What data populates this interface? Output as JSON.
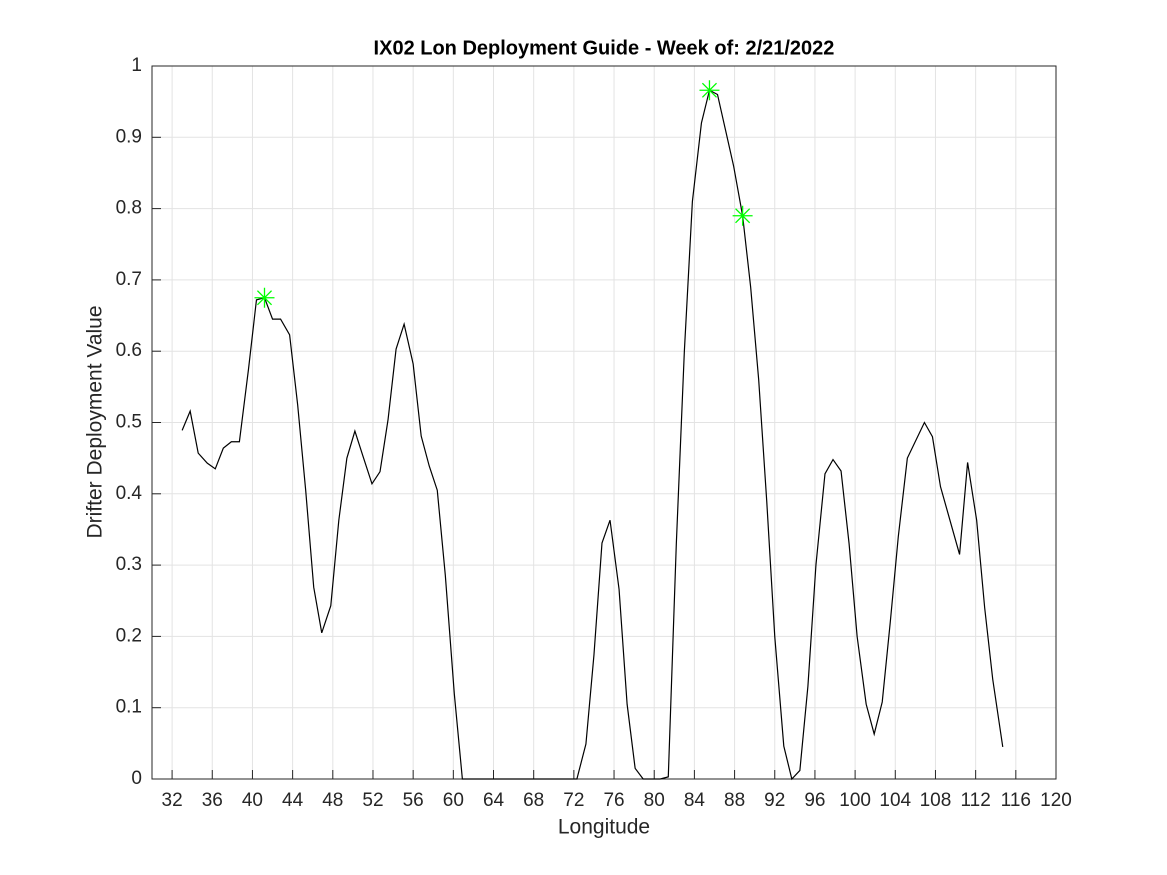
{
  "chart_data": {
    "type": "line",
    "title": "IX02 Lon Deployment Guide - Week of: 2/21/2022",
    "x_label": "Longitude",
    "y_label": "Drifter Deployment Value",
    "xlim": [
      30,
      120
    ],
    "ylim": [
      0,
      1
    ],
    "xticks": [
      32,
      36,
      40,
      44,
      48,
      52,
      56,
      60,
      64,
      68,
      72,
      76,
      80,
      84,
      88,
      92,
      96,
      100,
      104,
      108,
      112,
      116,
      120
    ],
    "yticks": [
      0,
      0.1,
      0.2,
      0.3,
      0.4,
      0.5,
      0.6,
      0.7,
      0.8,
      0.9,
      1
    ],
    "grid": true,
    "series": [
      {
        "type": "line",
        "color": "#000000",
        "x": [
          33.0,
          33.8,
          34.6,
          35.5,
          36.3,
          37.1,
          37.9,
          38.7,
          39.6,
          40.4,
          41.2,
          42.0,
          42.8,
          43.7,
          44.5,
          45.3,
          46.1,
          46.9,
          47.8,
          48.6,
          49.4,
          50.2,
          51.0,
          51.9,
          52.7,
          53.5,
          54.3,
          55.1,
          56.0,
          56.8,
          57.6,
          58.4,
          59.2,
          60.1,
          60.9,
          61.7,
          62.5,
          63.3,
          64.1,
          65.0,
          65.8,
          66.6,
          67.4,
          68.2,
          69.1,
          69.9,
          70.7,
          71.5,
          72.3,
          73.2,
          74.0,
          74.8,
          75.6,
          76.5,
          77.3,
          78.1,
          78.9,
          79.7,
          80.6,
          81.4,
          82.2,
          83.0,
          83.8,
          84.7,
          85.5,
          86.3,
          87.1,
          87.9,
          88.8,
          89.6,
          90.4,
          91.2,
          92.0,
          92.9,
          93.7,
          94.5,
          95.3,
          96.1,
          97.0,
          97.8,
          98.6,
          99.4,
          100.2,
          101.1,
          101.9,
          102.7,
          103.5,
          104.3,
          105.2,
          106.9,
          107.7,
          108.5,
          109.3,
          110.4,
          111.2,
          112.1,
          112.9,
          113.7,
          114.7
        ],
        "values": [
          0.489,
          0.516,
          0.457,
          0.443,
          0.435,
          0.464,
          0.473,
          0.473,
          0.574,
          0.672,
          0.675,
          0.645,
          0.645,
          0.623,
          0.525,
          0.405,
          0.269,
          0.205,
          0.243,
          0.363,
          0.45,
          0.488,
          0.453,
          0.414,
          0.431,
          0.504,
          0.603,
          0.638,
          0.582,
          0.481,
          0.439,
          0.405,
          0.286,
          0.119,
          0,
          0,
          0,
          0,
          0,
          0,
          0,
          0,
          0,
          0,
          0,
          0,
          0,
          0,
          0,
          0.049,
          0.174,
          0.331,
          0.363,
          0.266,
          0.105,
          0.015,
          0,
          0,
          0,
          0.003,
          0.33,
          0.6,
          0.81,
          0.92,
          0.966,
          0.96,
          0.91,
          0.86,
          0.79,
          0.69,
          0.56,
          0.39,
          0.2,
          0.046,
          0,
          0.012,
          0.13,
          0.3,
          0.428,
          0.448,
          0.432,
          0.33,
          0.2,
          0.105,
          0.063,
          0.108,
          0.22,
          0.34,
          0.45,
          0.5,
          0.48,
          0.41,
          0.37,
          0.315,
          0.444,
          0.363,
          0.24,
          0.14,
          0.045
        ]
      },
      {
        "type": "scatter",
        "marker": "asterisk",
        "color": "#00ff00",
        "x": [
          41.2,
          85.5,
          88.8
        ],
        "values": [
          0.675,
          0.966,
          0.79
        ]
      }
    ]
  }
}
